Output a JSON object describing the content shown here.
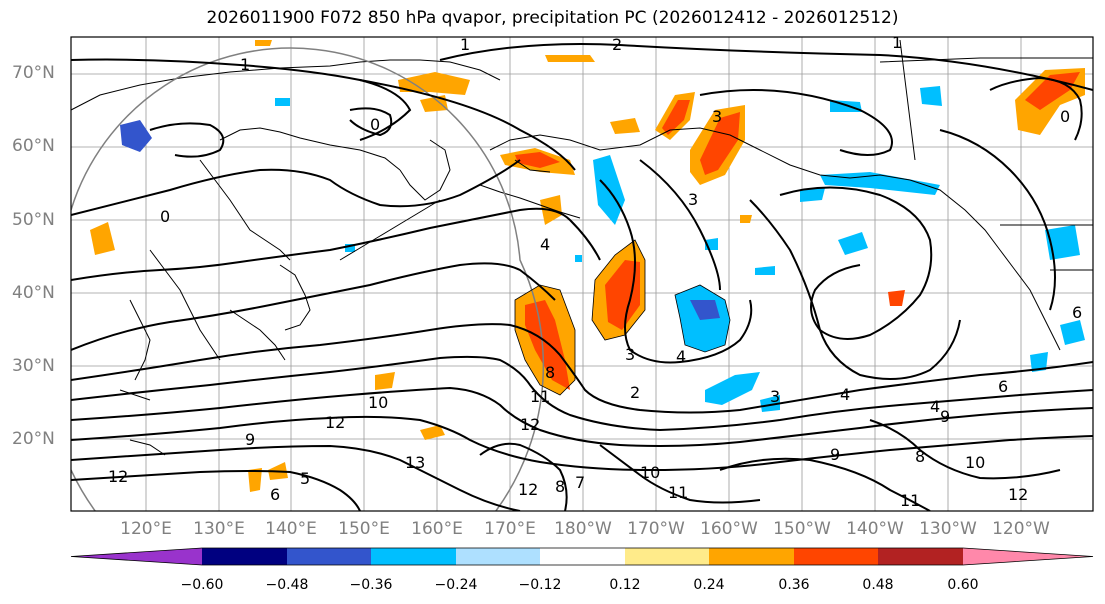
{
  "title": "2026011900 F072 850 hPa qvapor, precipitation PC (2026012412 - 2026012512)",
  "lat_labels": [
    "70°N",
    "60°N",
    "50°N",
    "40°N",
    "30°N",
    "20°N"
  ],
  "lon_labels": [
    "120°E",
    "130°E",
    "140°E",
    "150°E",
    "160°E",
    "170°E",
    "180°W",
    "170°W",
    "160°W",
    "150°W",
    "140°W",
    "130°W",
    "120°W"
  ],
  "colorbar": {
    "colors": [
      "#9933cc",
      "#000080",
      "#3355cc",
      "#00bfff",
      "#aee0ff",
      "#ffffff",
      "#ffeb8a",
      "#ffa500",
      "#ff4500",
      "#b22222",
      "#ff88aa"
    ],
    "ticks": [
      "−0.60",
      "−0.48",
      "−0.36",
      "−0.24",
      "−0.12",
      "0.12",
      "0.24",
      "0.36",
      "0.48",
      "0.60"
    ]
  },
  "contour_labels": [
    "1",
    "2",
    "1",
    "1",
    "0",
    "0",
    "0",
    "3",
    "3",
    "4",
    "4",
    "4",
    "3",
    "2",
    "3",
    "4",
    "6",
    "8",
    "10",
    "11",
    "12",
    "12",
    "12",
    "13",
    "9",
    "9",
    "10",
    "11",
    "12",
    "6",
    "8",
    "9",
    "11",
    "12",
    "10",
    "7",
    "8",
    "5",
    "6"
  ]
}
